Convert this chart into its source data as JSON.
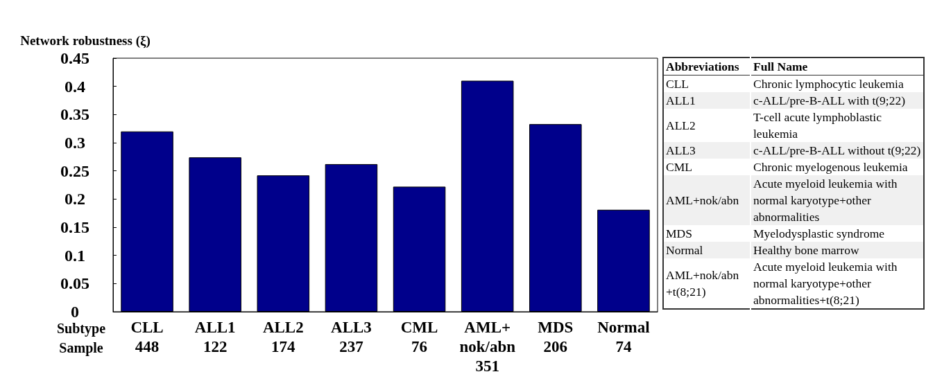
{
  "chart_data": [
    {
      "type": "bar",
      "ylabel": "Network robustness (ξ)",
      "xlabel": "Subtype\nSample",
      "categories": [
        "CLL\n448",
        "ALL1\n122",
        "ALL2\n174",
        "ALL3\n237",
        "CML\n76",
        "AML+\nnok/abn\n351",
        "MDS\n206",
        "Normal\n74"
      ],
      "values": [
        0.32,
        0.274,
        0.242,
        0.262,
        0.222,
        0.41,
        0.333,
        0.181
      ],
      "color": "#00008b",
      "ylim": [
        0,
        0.45
      ],
      "yticks": [
        0,
        0.05,
        0.1,
        0.15,
        0.2,
        0.25,
        0.3,
        0.35,
        0.4,
        0.45
      ],
      "grid": false
    },
    {
      "type": "other",
      "annotations": [
        "Abbreviations",
        "Full Name",
        "CLL",
        "Chronic lymphocytic leukemia",
        "ALL1",
        "c-ALL/pre-B-ALL with t(9;22)",
        "ALL2",
        "T-cell acute lymphoblastic leukemia",
        "ALL3",
        "c-ALL/pre-B-ALL without t(9;22)",
        "CML",
        "Chronic myelogenous leukemia",
        "AML+nok/abn",
        "Acute myeloid leukemia with normal karyotype+other abnormalities",
        "MDS",
        "Myelodysplastic syndrome",
        "Normal",
        "Healthy bone marrow",
        "AML+nok/abn +t(8;21)",
        "Acute myeloid leukemia with normal karyotype+other abnormalities+t(8;21)"
      ]
    }
  ]
}
